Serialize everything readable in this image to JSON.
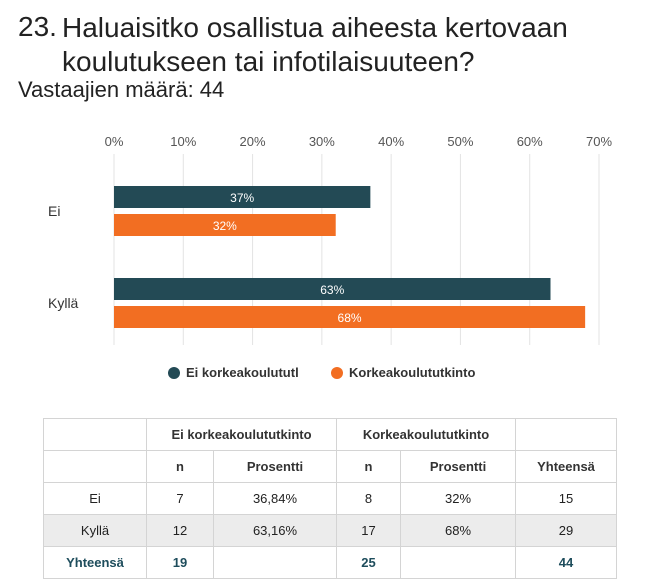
{
  "question": {
    "number": "23.",
    "title": "Haluaisitko osallistua aiheesta kertovaan koulutukseen tai infotilaisuuteen?",
    "respondents": "Vastaajien määrä: 44"
  },
  "colors": {
    "series1": "#234a55",
    "series2": "#f26e22"
  },
  "chart_data": {
    "type": "bar",
    "orientation": "horizontal",
    "categories": [
      "Ei",
      "Kyllä"
    ],
    "series": [
      {
        "name": "Ei korkeakoulututl",
        "values": [
          37,
          63
        ],
        "labels": [
          "37%",
          "63%"
        ]
      },
      {
        "name": "Korkeakoulututkinto",
        "values": [
          32,
          68
        ],
        "labels": [
          "32%",
          "68%"
        ]
      }
    ],
    "xlim": [
      0,
      70
    ],
    "ticks": [
      "0%",
      "10%",
      "20%",
      "30%",
      "40%",
      "50%",
      "60%",
      "70%"
    ],
    "grid": true,
    "legend": "bottom"
  },
  "table": {
    "group_headers": [
      "Ei korkeakoulututkinto",
      "Korkeakoulututkinto"
    ],
    "sub_headers": [
      "n",
      "Prosentti",
      "n",
      "Prosentti",
      "Yhteensä"
    ],
    "rows": [
      {
        "label": "Ei",
        "cells": [
          "7",
          "36,84%",
          "8",
          "32%",
          "15"
        ]
      },
      {
        "label": "Kyllä",
        "cells": [
          "12",
          "63,16%",
          "17",
          "68%",
          "29"
        ]
      }
    ],
    "total": {
      "label": "Yhteensä",
      "cells": [
        "19",
        "",
        "25",
        "",
        "44"
      ]
    }
  }
}
